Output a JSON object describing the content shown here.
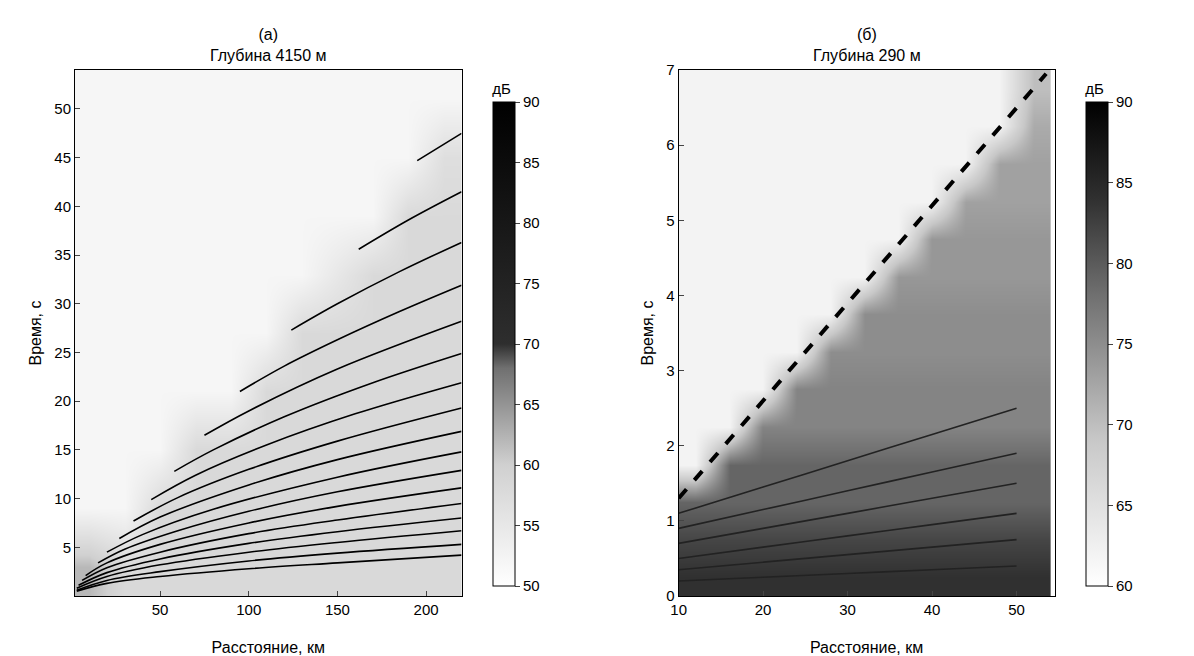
{
  "chart_data": [
    {
      "type": "heatmap",
      "panel": "(а)",
      "title": "Глубина 4150 м",
      "x_label": "Расстояние, км",
      "y_label": "Время, с",
      "xlim": [
        2,
        220
      ],
      "xticks": [
        50,
        100,
        150,
        200
      ],
      "ylim": [
        0,
        54
      ],
      "yticks": [
        5,
        10,
        15,
        20,
        25,
        30,
        35,
        40,
        45,
        50
      ],
      "cells": {
        "x": [
          10,
          30,
          50,
          70,
          90,
          110,
          130,
          150,
          170,
          190,
          210
        ],
        "y": [
          3,
          9,
          15,
          21,
          27,
          33,
          39,
          45,
          51
        ],
        "z": [
          [
            62,
            58,
            58,
            58,
            58,
            58,
            58,
            58,
            58,
            58,
            58
          ],
          [
            52,
            52,
            58,
            58,
            58,
            58,
            58,
            58,
            58,
            58,
            58
          ],
          [
            52,
            52,
            52,
            58,
            58,
            58,
            58,
            58,
            58,
            58,
            58
          ],
          [
            52,
            52,
            52,
            52,
            52,
            58,
            58,
            58,
            58,
            58,
            58
          ],
          [
            52,
            52,
            52,
            52,
            52,
            52,
            58,
            58,
            58,
            58,
            58
          ],
          [
            52,
            52,
            52,
            52,
            52,
            52,
            52,
            55,
            58,
            58,
            58
          ],
          [
            52,
            52,
            52,
            52,
            52,
            52,
            52,
            52,
            52,
            58,
            58
          ],
          [
            52,
            52,
            52,
            52,
            52,
            52,
            52,
            52,
            52,
            52,
            57
          ],
          [
            52,
            52,
            52,
            52,
            52,
            52,
            52,
            52,
            52,
            52,
            52
          ]
        ]
      },
      "colorbar": {
        "title": "дБ",
        "range": [
          50,
          90
        ],
        "ticks": [
          50,
          55,
          60,
          65,
          70,
          75,
          80,
          85,
          90
        ]
      },
      "series": [
        {
          "type": "line",
          "color": "#000000",
          "line_style": "solid",
          "x": [
            195,
            220
          ],
          "values": [
            44.7,
            47.5
          ]
        },
        {
          "type": "line",
          "color": "#000000",
          "line_style": "solid",
          "x": [
            162,
            190,
            220
          ],
          "values": [
            35.6,
            38.6,
            41.5
          ]
        },
        {
          "type": "line",
          "color": "#000000",
          "line_style": "solid",
          "x": [
            124,
            150,
            185,
            220
          ],
          "values": [
            27.3,
            30.0,
            33.3,
            36.3
          ]
        },
        {
          "type": "line",
          "color": "#000000",
          "line_style": "solid",
          "x": [
            95,
            120,
            150,
            185,
            220
          ],
          "values": [
            21.0,
            23.6,
            26.3,
            29.2,
            31.9
          ]
        },
        {
          "type": "line",
          "color": "#000000",
          "line_style": "solid",
          "x": [
            75,
            100,
            150,
            220
          ],
          "values": [
            16.5,
            19.0,
            23.3,
            28.2
          ]
        },
        {
          "type": "line",
          "color": "#000000",
          "line_style": "solid",
          "x": [
            58,
            80,
            120,
            170,
            220
          ],
          "values": [
            12.8,
            15.0,
            18.4,
            21.9,
            24.9
          ]
        },
        {
          "type": "line",
          "color": "#000000",
          "line_style": "solid",
          "x": [
            45,
            70,
            110,
            160,
            220
          ],
          "values": [
            9.9,
            12.4,
            15.5,
            18.7,
            21.9
          ]
        },
        {
          "type": "line",
          "color": "#000000",
          "line_style": "solid",
          "x": [
            35,
            60,
            100,
            150,
            220
          ],
          "values": [
            7.7,
            10.1,
            13.0,
            15.9,
            19.3
          ]
        },
        {
          "type": "line",
          "color": "#000000",
          "line_style": "solid",
          "x": [
            27,
            50,
            100,
            150,
            220
          ],
          "values": [
            5.9,
            8.1,
            11.4,
            14.0,
            16.9
          ]
        },
        {
          "type": "line",
          "color": "#000000",
          "line_style": "solid",
          "x": [
            20,
            40,
            80,
            150,
            220
          ],
          "values": [
            4.5,
            6.3,
            8.9,
            12.2,
            14.8
          ]
        },
        {
          "type": "line",
          "color": "#000000",
          "line_style": "solid",
          "x": [
            15,
            30,
            60,
            100,
            150,
            220
          ],
          "values": [
            3.4,
            4.8,
            6.7,
            8.7,
            10.7,
            12.9
          ]
        },
        {
          "type": "line",
          "color": "#000000",
          "line_style": "solid",
          "x": [
            8,
            20,
            50,
            100,
            150,
            220
          ],
          "values": [
            2.1,
            3.4,
            5.3,
            7.5,
            9.2,
            11.1
          ]
        },
        {
          "type": "line",
          "color": "#000000",
          "line_style": "solid",
          "x": [
            6,
            20,
            50,
            100,
            150,
            220
          ],
          "values": [
            1.6,
            2.9,
            4.5,
            6.4,
            7.8,
            9.5
          ]
        },
        {
          "type": "line",
          "color": "#000000",
          "line_style": "solid",
          "x": [
            4,
            20,
            50,
            100,
            150,
            220
          ],
          "values": [
            1.1,
            2.4,
            3.8,
            5.4,
            6.6,
            8.0
          ]
        },
        {
          "type": "line",
          "color": "#000000",
          "line_style": "solid",
          "x": [
            3,
            20,
            50,
            100,
            150,
            220
          ],
          "values": [
            0.8,
            2.0,
            3.2,
            4.5,
            5.5,
            6.7
          ]
        },
        {
          "type": "line",
          "color": "#000000",
          "line_style": "solid",
          "x": [
            3,
            20,
            50,
            100,
            150,
            220
          ],
          "values": [
            0.6,
            1.6,
            2.5,
            3.6,
            4.4,
            5.3
          ]
        },
        {
          "type": "line",
          "color": "#000000",
          "line_style": "solid",
          "x": [
            3,
            20,
            50,
            100,
            150,
            220
          ],
          "values": [
            0.5,
            1.3,
            2.0,
            2.8,
            3.4,
            4.2
          ]
        }
      ]
    },
    {
      "type": "heatmap",
      "panel": "(б)",
      "title": "Глубина 290 м",
      "x_label": "Расстояние, км",
      "y_label": "Время, с",
      "xlim": [
        10,
        54.5
      ],
      "xticks": [
        10,
        20,
        30,
        40,
        50
      ],
      "ylim": [
        0,
        7
      ],
      "yticks": [
        0,
        1,
        2,
        3,
        4,
        5,
        6,
        7
      ],
      "cells": {
        "x": [
          12,
          16,
          20,
          24,
          28,
          32,
          36,
          40,
          44,
          48,
          52
        ],
        "y": [
          0.25,
          0.75,
          1.25,
          1.75,
          2.25,
          2.75,
          3.25,
          3.75,
          4.25,
          4.75,
          5.25,
          5.75,
          6.25,
          6.75
        ],
        "z": [
          [
            84,
            84,
            84,
            84,
            84,
            84,
            84,
            84,
            84,
            84,
            84
          ],
          [
            82,
            82,
            82,
            82,
            82,
            82,
            82,
            82,
            82,
            82,
            82
          ],
          [
            79,
            79,
            79,
            79,
            79,
            79,
            79,
            79,
            79,
            79,
            79
          ],
          [
            62,
            79,
            79,
            79,
            79,
            79,
            79,
            79,
            79,
            79,
            79
          ],
          [
            62,
            62,
            76,
            76,
            76,
            76,
            76,
            76,
            76,
            76,
            76
          ],
          [
            62,
            62,
            62,
            76,
            76,
            76,
            76,
            76,
            76,
            76,
            76
          ],
          [
            62,
            62,
            62,
            62,
            75,
            75,
            75,
            75,
            75,
            75,
            75
          ],
          [
            62,
            62,
            62,
            62,
            62,
            75,
            75,
            75,
            75,
            75,
            75
          ],
          [
            62,
            62,
            62,
            62,
            62,
            62,
            74,
            74,
            74,
            74,
            74
          ],
          [
            62,
            62,
            62,
            62,
            62,
            62,
            62,
            74,
            74,
            74,
            74
          ],
          [
            62,
            62,
            62,
            62,
            62,
            62,
            62,
            62,
            73,
            73,
            73
          ],
          [
            62,
            62,
            62,
            62,
            62,
            62,
            62,
            62,
            62,
            73,
            73
          ],
          [
            62,
            62,
            62,
            62,
            62,
            62,
            62,
            62,
            62,
            62,
            72
          ],
          [
            62,
            62,
            62,
            62,
            62,
            62,
            62,
            62,
            62,
            62,
            70
          ]
        ]
      },
      "colorbar": {
        "title": "дБ",
        "range": [
          60,
          90
        ],
        "ticks": [
          60,
          65,
          70,
          75,
          80,
          85,
          90
        ]
      },
      "series": [
        {
          "type": "line",
          "color": "#000000",
          "line_style": "dash",
          "x": [
            10,
            53.5
          ],
          "values": [
            1.3,
            6.95
          ]
        },
        {
          "type": "line",
          "color": "#222222",
          "line_style": "solid",
          "x": [
            10,
            20,
            30,
            40,
            50
          ],
          "values": [
            1.1,
            1.45,
            1.8,
            2.15,
            2.5
          ]
        },
        {
          "type": "line",
          "color": "#222222",
          "line_style": "solid",
          "x": [
            10,
            20,
            30,
            40,
            50
          ],
          "values": [
            0.9,
            1.15,
            1.4,
            1.65,
            1.9
          ]
        },
        {
          "type": "line",
          "color": "#222222",
          "line_style": "solid",
          "x": [
            10,
            20,
            30,
            40,
            50
          ],
          "values": [
            0.7,
            0.9,
            1.1,
            1.3,
            1.5
          ]
        },
        {
          "type": "line",
          "color": "#222222",
          "line_style": "solid",
          "x": [
            10,
            20,
            30,
            40,
            50
          ],
          "values": [
            0.5,
            0.65,
            0.8,
            0.95,
            1.1
          ]
        },
        {
          "type": "line",
          "color": "#222222",
          "line_style": "solid",
          "x": [
            10,
            20,
            30,
            40,
            50
          ],
          "values": [
            0.35,
            0.45,
            0.55,
            0.65,
            0.75
          ]
        },
        {
          "type": "line",
          "color": "#222222",
          "line_style": "solid",
          "x": [
            10,
            20,
            30,
            40,
            50
          ],
          "values": [
            0.2,
            0.25,
            0.3,
            0.35,
            0.4
          ]
        }
      ]
    }
  ]
}
